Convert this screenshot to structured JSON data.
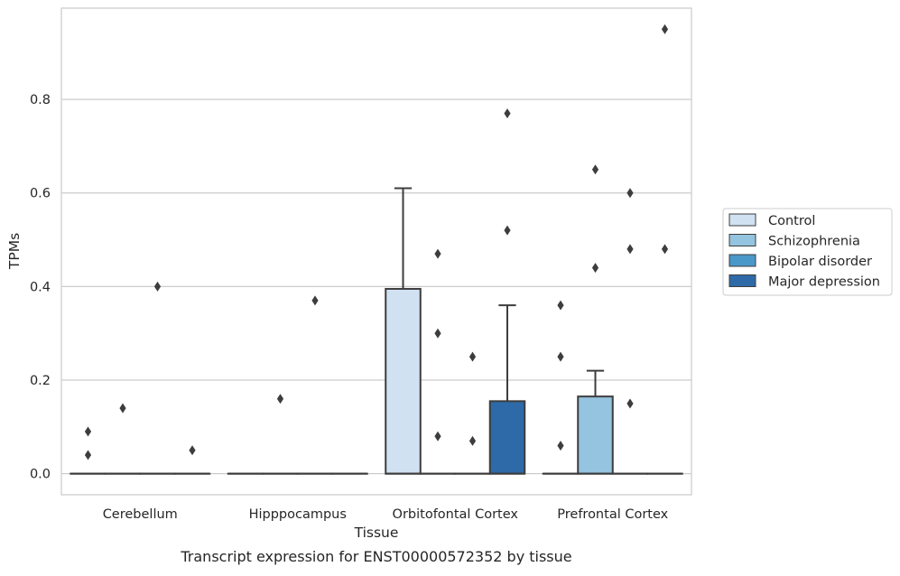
{
  "chart_data": {
    "type": "box",
    "xlabel": "Tissue",
    "ylabel": "TPMs",
    "caption": "Transcript expression for ENST00000572352 by tissue",
    "categories": [
      "Cerebellum",
      "Hipppocampus",
      "Orbitofontal Cortex",
      "Prefrontal Cortex"
    ],
    "ylim": [
      -0.045,
      0.995
    ],
    "yticks": [
      "0.0",
      "0.2",
      "0.4",
      "0.6",
      "0.8"
    ],
    "grid": true,
    "legend_position": "right",
    "series": [
      {
        "name": "Control",
        "color": "#d0e1f2",
        "boxes": [
          {
            "q1": 0,
            "median": 0,
            "q3": 0,
            "whisker_low": 0,
            "whisker_high": 0,
            "outliers": [
              0.09,
              0.04
            ]
          },
          {
            "q1": 0,
            "median": 0,
            "q3": 0,
            "whisker_low": 0,
            "whisker_high": 0,
            "outliers": []
          },
          {
            "q1": 0,
            "median": 0,
            "q3": 0.395,
            "whisker_low": 0,
            "whisker_high": 0.61,
            "outliers": []
          },
          {
            "q1": 0,
            "median": 0,
            "q3": 0,
            "whisker_low": 0,
            "whisker_high": 0,
            "outliers": [
              0.36,
              0.25,
              0.06
            ]
          }
        ]
      },
      {
        "name": "Schizophrenia",
        "color": "#94c4df",
        "boxes": [
          {
            "q1": 0,
            "median": 0,
            "q3": 0,
            "whisker_low": 0,
            "whisker_high": 0,
            "outliers": [
              0.14
            ]
          },
          {
            "q1": 0,
            "median": 0,
            "q3": 0,
            "whisker_low": 0,
            "whisker_high": 0,
            "outliers": [
              0.16
            ]
          },
          {
            "q1": 0,
            "median": 0,
            "q3": 0,
            "whisker_low": 0,
            "whisker_high": 0,
            "outliers": [
              0.47,
              0.3,
              0.08
            ]
          },
          {
            "q1": 0,
            "median": 0,
            "q3": 0.165,
            "whisker_low": 0,
            "whisker_high": 0.22,
            "outliers": [
              0.65,
              0.44
            ]
          }
        ]
      },
      {
        "name": "Bipolar disorder",
        "color": "#4a98c9",
        "boxes": [
          {
            "q1": 0,
            "median": 0,
            "q3": 0,
            "whisker_low": 0,
            "whisker_high": 0,
            "outliers": [
              0.4
            ]
          },
          {
            "q1": 0,
            "median": 0,
            "q3": 0,
            "whisker_low": 0,
            "whisker_high": 0,
            "outliers": [
              0.37
            ]
          },
          {
            "q1": 0,
            "median": 0,
            "q3": 0,
            "whisker_low": 0,
            "whisker_high": 0,
            "outliers": [
              0.25,
              0.07
            ]
          },
          {
            "q1": 0,
            "median": 0,
            "q3": 0,
            "whisker_low": 0,
            "whisker_high": 0,
            "outliers": [
              0.6,
              0.48,
              0.15
            ]
          }
        ]
      },
      {
        "name": "Major depression",
        "color": "#2e6aa8",
        "boxes": [
          {
            "q1": 0,
            "median": 0,
            "q3": 0,
            "whisker_low": 0,
            "whisker_high": 0,
            "outliers": [
              0.05
            ]
          },
          {
            "q1": 0,
            "median": 0,
            "q3": 0,
            "whisker_low": 0,
            "whisker_high": 0,
            "outliers": []
          },
          {
            "q1": 0,
            "median": 0,
            "q3": 0.155,
            "whisker_low": 0,
            "whisker_high": 0.36,
            "outliers": [
              0.77,
              0.52
            ]
          },
          {
            "q1": 0,
            "median": 0,
            "q3": 0,
            "whisker_low": 0,
            "whisker_high": 0,
            "outliers": [
              0.95,
              0.48
            ]
          }
        ]
      }
    ]
  }
}
